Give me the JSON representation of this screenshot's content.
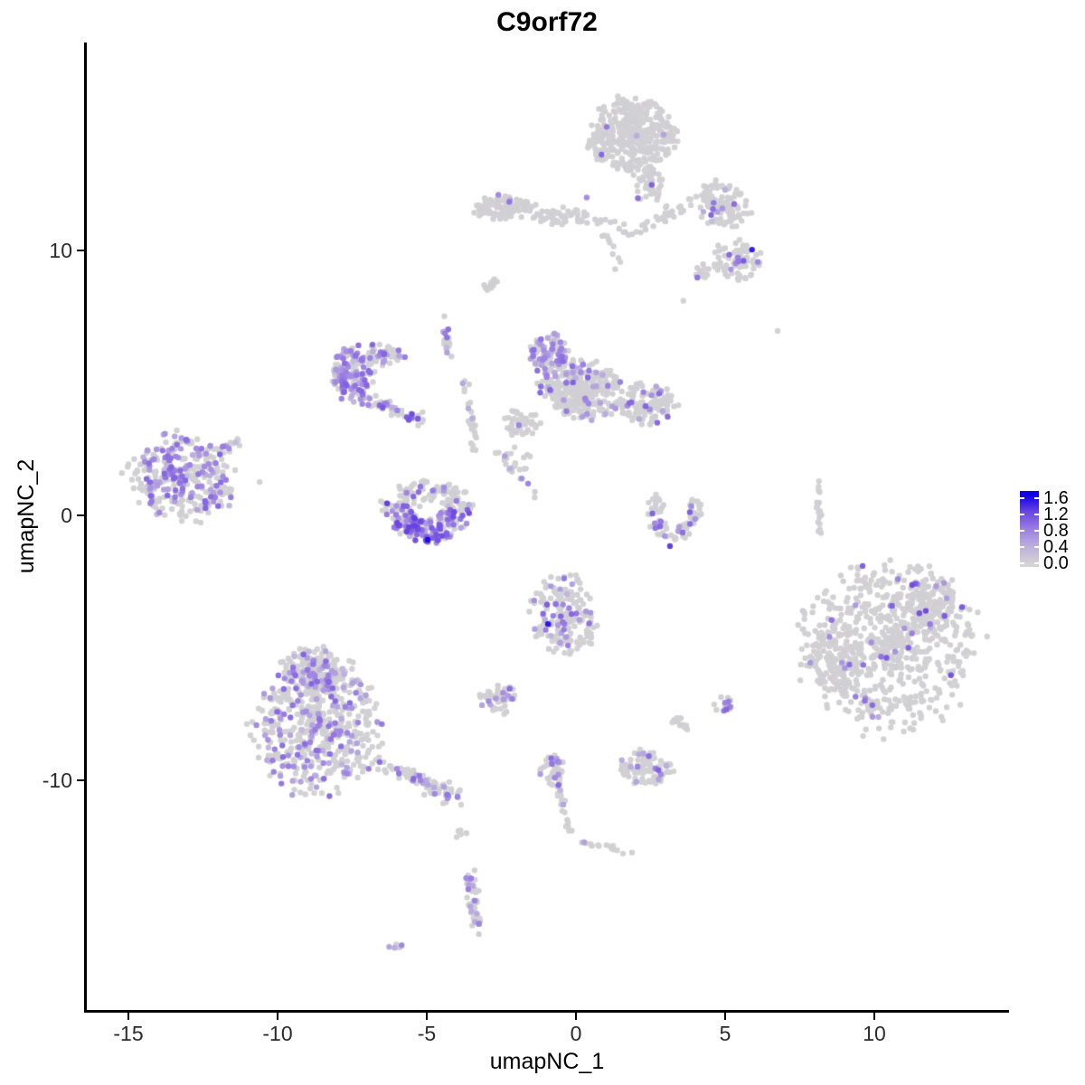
{
  "title": "C9orf72",
  "axis_x": {
    "label": "umapNC_1",
    "ticks": [
      {
        "v": -15,
        "label": "-15"
      },
      {
        "v": -10,
        "label": "-10"
      },
      {
        "v": -5,
        "label": "-5"
      },
      {
        "v": 0,
        "label": "0"
      },
      {
        "v": 5,
        "label": "5"
      },
      {
        "v": 10,
        "label": "10"
      }
    ]
  },
  "axis_y": {
    "label": "umapNC_2",
    "ticks": [
      {
        "v": 10,
        "label": "10"
      },
      {
        "v": 0,
        "label": "0"
      },
      {
        "v": -10,
        "label": "-10"
      }
    ]
  },
  "legend": {
    "tick_labels": [
      {
        "v": 1.6,
        "label": "1.6"
      },
      {
        "v": 1.2,
        "label": "1.2"
      },
      {
        "v": 0.8,
        "label": "0.8"
      },
      {
        "v": 0.4,
        "label": "0.4"
      },
      {
        "v": 0.0,
        "label": "0.0"
      }
    ],
    "vmax": 1.6
  },
  "colors": {
    "background": "#ffffff",
    "axis": "#000000",
    "point_low": "#d3d3d3",
    "point_high": "#1000e8",
    "gradient_stops": [
      "#d3d3d3",
      "#bbaede",
      "#9b7fe2",
      "#6b46e0",
      "#1000e8"
    ]
  },
  "chart_data": {
    "type": "scatter",
    "title": "C9orf72",
    "xlabel": "umapNC_1",
    "ylabel": "umapNC_2",
    "xlim": [
      -16.4,
      14.5
    ],
    "ylim": [
      -18.6,
      17.8
    ],
    "legend_range": [
      0.0,
      1.6
    ],
    "point_radius_px": 3.2,
    "clusters": [
      {
        "id": "top-main",
        "shape": "blob",
        "x": 1.82,
        "y": 14.33,
        "rx": 1.45,
        "ry": 1.42,
        "n": 380,
        "frac": 0.02
      },
      {
        "id": "top-neck",
        "shape": "blob",
        "x": 2.45,
        "y": 12.46,
        "rx": 0.5,
        "ry": 0.75,
        "n": 50,
        "frac": 0.02
      },
      {
        "id": "band-left",
        "shape": "blob",
        "x": -2.4,
        "y": 11.6,
        "rx": 1.05,
        "ry": 0.42,
        "n": 100,
        "frac": 0.01
      },
      {
        "id": "band-right",
        "shape": "blob",
        "x": -0.45,
        "y": 11.26,
        "rx": 0.95,
        "ry": 0.35,
        "n": 50,
        "frac": 0
      },
      {
        "id": "band-trail",
        "shape": "line",
        "x1": 0.5,
        "y1": 11.1,
        "x2": 1.9,
        "y2": 10.7,
        "w": 0.25,
        "n": 14,
        "frac": 0
      },
      {
        "id": "neck-trail",
        "shape": "line",
        "x1": 2.06,
        "y1": 10.75,
        "x2": 3.97,
        "y2": 11.88,
        "w": 0.3,
        "n": 30,
        "frac": 0.03
      },
      {
        "id": "sparse-neck-down",
        "shape": "line",
        "x1": 0.95,
        "y1": 10.9,
        "x2": 1.6,
        "y2": 9.2,
        "w": 0.3,
        "n": 10,
        "frac": 0
      },
      {
        "id": "right-mid",
        "shape": "blob",
        "x": 4.94,
        "y": 11.74,
        "rx": 0.95,
        "ry": 0.82,
        "n": 110,
        "frac": 0.05
      },
      {
        "id": "right-low",
        "shape": "blob",
        "x": 5.42,
        "y": 9.62,
        "rx": 0.82,
        "ry": 0.72,
        "n": 85,
        "frac": 0.13,
        "vmin": 0.6,
        "vmax": 1.2
      },
      {
        "id": "right-low-bridge",
        "shape": "blob",
        "x": 4.24,
        "y": 9.18,
        "rx": 0.32,
        "ry": 0.26,
        "n": 14,
        "frac": 0.15
      },
      {
        "id": "mid-sliver",
        "shape": "line",
        "x1": -3.03,
        "y1": 8.46,
        "x2": -2.64,
        "y2": 8.94,
        "w": 0.18,
        "n": 14,
        "frac": 0
      },
      {
        "id": "arm-main",
        "shape": "blob",
        "x": -7.52,
        "y": 5.39,
        "rx": 0.68,
        "ry": 0.98,
        "n": 135,
        "frac": 0.5,
        "vmin": 0.45,
        "vmax": 1.05
      },
      {
        "id": "arm-upper",
        "shape": "blob",
        "x": -6.42,
        "y": 6.04,
        "rx": 0.62,
        "ry": 0.42,
        "n": 55,
        "frac": 0.28
      },
      {
        "id": "arm-trail",
        "shape": "line",
        "x1": -7.24,
        "y1": 4.5,
        "x2": -5.12,
        "y2": 3.62,
        "w": 0.32,
        "n": 50,
        "frac": 0.3,
        "vmin": 0.5,
        "vmax": 1.15
      },
      {
        "id": "string-a",
        "shape": "line",
        "x1": -4.45,
        "y1": 7.44,
        "x2": -4.24,
        "y2": 5.97,
        "w": 0.15,
        "n": 18,
        "frac": 0.15
      },
      {
        "id": "string-b",
        "shape": "line",
        "x1": -3.67,
        "y1": 5.12,
        "x2": -3.42,
        "y2": 2.39,
        "w": 0.15,
        "n": 26,
        "frac": 0.12
      },
      {
        "id": "connector",
        "shape": "line",
        "x1": -2.7,
        "y1": 2.46,
        "x2": -1.18,
        "y2": 0.61,
        "w": 0.2,
        "n": 16,
        "frac": 0.3
      },
      {
        "id": "center-lobe",
        "shape": "blob",
        "x": -0.94,
        "y": 6.08,
        "rx": 0.62,
        "ry": 0.82,
        "n": 95,
        "frac": 0.45,
        "vmin": 0.45,
        "vmax": 1.0
      },
      {
        "id": "center-main",
        "shape": "blob",
        "x": 0.24,
        "y": 4.71,
        "rx": 1.42,
        "ry": 1.05,
        "n": 300,
        "frac": 0.13
      },
      {
        "id": "center-wing",
        "shape": "blob",
        "x": 2.39,
        "y": 4.2,
        "rx": 0.95,
        "ry": 0.78,
        "n": 120,
        "frac": 0.16
      },
      {
        "id": "center-foot",
        "shape": "blob",
        "x": -1.79,
        "y": 3.48,
        "rx": 0.6,
        "ry": 0.52,
        "n": 45,
        "frac": 0.1
      },
      {
        "id": "center-gap",
        "shape": "blob",
        "x": -1.88,
        "y": 2.05,
        "rx": 0.5,
        "ry": 0.6,
        "n": 12,
        "frac": 0.1
      },
      {
        "id": "farleft-main",
        "shape": "blob",
        "x": -13.24,
        "y": 1.43,
        "rx": 1.72,
        "ry": 1.56,
        "n": 340,
        "frac": 0.38,
        "vmin": 0.45,
        "vmax": 1.05
      },
      {
        "id": "farleft-tail",
        "shape": "line",
        "x1": -11.94,
        "y1": 2.39,
        "x2": -11.21,
        "y2": 2.87,
        "w": 0.2,
        "n": 14,
        "frac": 0.35
      },
      {
        "id": "bowl",
        "shape": "arc",
        "x": -5.0,
        "y": 0.55,
        "r": 1.5,
        "ryr": 1.6,
        "a0": 180,
        "a1": 360,
        "w": 0.55,
        "n": 210,
        "frac": 0.55,
        "vmin": 0.5,
        "vmax": 1.3,
        "bias": "bottom"
      },
      {
        "id": "bowl-top",
        "shape": "blob",
        "x": -5.0,
        "y": 0.8,
        "rx": 1.35,
        "ry": 0.45,
        "n": 65,
        "frac": 0.08
      },
      {
        "id": "crescent-right",
        "shape": "arc",
        "x": 3.3,
        "y": 0.1,
        "r": 0.95,
        "ryr": 1.05,
        "a0": 140,
        "a1": 395,
        "w": 0.5,
        "n": 85,
        "frac": 0.18,
        "vmin": 0.5,
        "vmax": 1.1,
        "bias": "bottom"
      },
      {
        "id": "right-strip",
        "shape": "line",
        "x1": 8.06,
        "y1": 1.3,
        "x2": 8.18,
        "y2": -0.68,
        "w": 0.12,
        "n": 18,
        "frac": 0
      },
      {
        "id": "right-big",
        "shape": "blob",
        "x": 10.55,
        "y": -4.88,
        "rx": 2.78,
        "ry": 3.1,
        "n": 700,
        "frac": 0.05,
        "vmin": 0.55,
        "vmax": 1.25
      },
      {
        "id": "right-big-left",
        "shape": "blob",
        "x": 8.58,
        "y": -5.63,
        "rx": 0.85,
        "ry": 1.05,
        "n": 80,
        "frac": 0.04
      },
      {
        "id": "right-big-top",
        "shape": "blob",
        "x": 11.9,
        "y": -3.3,
        "rx": 0.95,
        "ry": 0.95,
        "n": 90,
        "frac": 0.05
      },
      {
        "id": "mid-bottom",
        "shape": "blob",
        "x": -0.36,
        "y": -3.75,
        "rx": 1.08,
        "ry": 1.55,
        "n": 185,
        "frac": 0.12,
        "vmin": 0.5,
        "vmax": 1.1
      },
      {
        "id": "mid-bottom-left",
        "shape": "blob",
        "x": -2.58,
        "y": -6.89,
        "rx": 0.56,
        "ry": 0.62,
        "n": 48,
        "frac": 0.2
      },
      {
        "id": "bl-main",
        "shape": "blob",
        "x": -8.64,
        "y": -7.85,
        "rx": 2.08,
        "ry": 2.5,
        "n": 540,
        "frac": 0.22,
        "vmin": 0.45,
        "vmax": 1.0
      },
      {
        "id": "bl-top",
        "shape": "blob",
        "x": -8.76,
        "y": -5.8,
        "rx": 1.0,
        "ry": 0.88,
        "n": 140,
        "frac": 0.2
      },
      {
        "id": "bl-tail",
        "shape": "line",
        "x1": -6.58,
        "y1": -9.39,
        "x2": -3.91,
        "y2": -10.65,
        "w": 0.42,
        "n": 75,
        "frac": 0.2
      },
      {
        "id": "b-small-1",
        "shape": "blob",
        "x": -0.82,
        "y": -9.62,
        "rx": 0.46,
        "ry": 0.56,
        "n": 38,
        "frac": 0.12
      },
      {
        "id": "b-small-2",
        "shape": "blob",
        "x": 2.33,
        "y": -9.52,
        "rx": 0.86,
        "ry": 0.62,
        "n": 85,
        "frac": 0.12
      },
      {
        "id": "b-tiny-1",
        "shape": "blob",
        "x": 3.48,
        "y": -7.85,
        "rx": 0.3,
        "ry": 0.28,
        "n": 14,
        "frac": 0
      },
      {
        "id": "b-tiny-2",
        "shape": "blob",
        "x": 4.97,
        "y": -7.13,
        "rx": 0.38,
        "ry": 0.32,
        "n": 16,
        "frac": 0.2
      },
      {
        "id": "string-down",
        "shape": "line",
        "x1": -0.73,
        "y1": -9.32,
        "x2": -0.18,
        "y2": -12.08,
        "w": 0.14,
        "n": 32,
        "frac": 0.15
      },
      {
        "id": "string-se",
        "shape": "line",
        "x1": 0.03,
        "y1": -12.25,
        "x2": 1.91,
        "y2": -12.76,
        "w": 0.14,
        "n": 16,
        "frac": 0.12
      },
      {
        "id": "bottom-strip",
        "shape": "line",
        "x1": -3.58,
        "y1": -13.41,
        "x2": -3.27,
        "y2": -15.77,
        "w": 0.3,
        "n": 50,
        "frac": 0.18
      },
      {
        "id": "bottom-dot",
        "shape": "blob",
        "x": -6.06,
        "y": -16.21,
        "rx": 0.22,
        "ry": 0.18,
        "n": 6,
        "frac": 0.3
      },
      {
        "id": "mid-dots",
        "shape": "blob",
        "x": -3.88,
        "y": -12.01,
        "rx": 0.22,
        "ry": 0.2,
        "n": 5,
        "frac": 0
      }
    ],
    "highlight_points": [
      [
        -4.97,
        -0.92,
        1.6
      ],
      [
        -0.94,
        -4.1,
        1.55
      ],
      [
        5.9,
        10.03,
        1.5
      ],
      [
        3.15,
        -1.16,
        1.3
      ],
      [
        -5.5,
        3.82,
        1.2
      ],
      [
        -5.3,
        3.65,
        1.1
      ],
      [
        11.27,
        -2.63,
        1.2
      ],
      [
        -2.6,
        12.1,
        0.75
      ],
      [
        0.36,
        12.0,
        0.72
      ],
      [
        6.76,
        6.96,
        0.02
      ],
      [
        3.6,
        8.1,
        0.02
      ],
      [
        -10.6,
        1.26,
        0.02
      ]
    ]
  }
}
